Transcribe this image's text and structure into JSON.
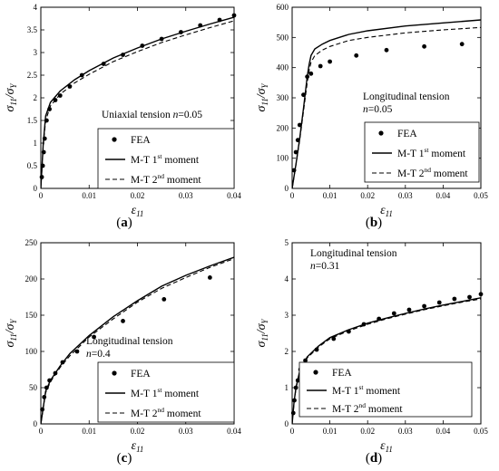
{
  "panels": [
    {
      "caption": "a",
      "annotation": [
        "Uniaxial tension ",
        "n",
        "=0.05"
      ],
      "ylabel": [
        "σ",
        "11",
        "/σ",
        "Y"
      ],
      "xlabel": [
        "ε",
        "11"
      ],
      "xlim": [
        0,
        0.04
      ],
      "ylim": [
        0,
        4
      ],
      "xticks": [
        0,
        0.01,
        0.02,
        0.03,
        0.04
      ],
      "xtick_labels": [
        "0",
        "0.01",
        "0.02",
        "0.03",
        "0.04"
      ],
      "yticks": [
        0,
        0.5,
        1,
        1.5,
        2,
        2.5,
        3,
        3.5,
        4
      ],
      "ytick_labels": [
        "0",
        "0.5",
        "1",
        "1.5",
        "2",
        "2.5",
        "3",
        "3.5",
        "4"
      ],
      "legend": [
        "FEA",
        "M-T 1",
        "st",
        " moment",
        "M-T 2",
        "nd",
        " moment"
      ]
    },
    {
      "caption": "b",
      "annotation": [
        "Longitudinal tension",
        "n",
        "=0.05"
      ],
      "ylabel": [
        "σ",
        "11",
        "/σ",
        "Y"
      ],
      "xlabel": [
        "ε",
        "11"
      ],
      "xlim": [
        0,
        0.05
      ],
      "ylim": [
        0,
        600
      ],
      "xticks": [
        0,
        0.01,
        0.02,
        0.03,
        0.04,
        0.05
      ],
      "xtick_labels": [
        "0",
        "0.01",
        "0.02",
        "0.03",
        "0.04",
        "0.05"
      ],
      "yticks": [
        0,
        100,
        200,
        300,
        400,
        500,
        600
      ],
      "ytick_labels": [
        "0",
        "100",
        "200",
        "300",
        "400",
        "500",
        "600"
      ],
      "legend": [
        "FEA",
        "M-T 1",
        "st",
        " moment",
        "M-T 2",
        "nd",
        " moment"
      ]
    },
    {
      "caption": "c",
      "annotation": [
        "Longitudinal tension",
        "n",
        "=0.4"
      ],
      "ylabel": [
        "σ",
        "11",
        "/σ",
        "Y"
      ],
      "xlabel": [
        "ε",
        "11"
      ],
      "xlim": [
        0,
        0.04
      ],
      "ylim": [
        0,
        250
      ],
      "xticks": [
        0,
        0.01,
        0.02,
        0.03,
        0.04
      ],
      "xtick_labels": [
        "0",
        "0.01",
        "0.02",
        "0.03",
        "0.04"
      ],
      "yticks": [
        0,
        50,
        100,
        150,
        200,
        250
      ],
      "ytick_labels": [
        "0",
        "50",
        "100",
        "150",
        "200",
        "250"
      ],
      "legend": [
        "FEA",
        "M-T 1",
        "st",
        " moment",
        "M-T 2",
        "nd",
        " moment"
      ]
    },
    {
      "caption": "d",
      "annotation": [
        "Longitudinal tension",
        "n",
        "=0.31"
      ],
      "ylabel": [
        "σ",
        "11",
        "/σ",
        "Y"
      ],
      "xlabel": [
        "ε",
        "11"
      ],
      "xlim": [
        0,
        0.05
      ],
      "ylim": [
        0,
        5
      ],
      "xticks": [
        0,
        0.01,
        0.02,
        0.03,
        0.04,
        0.05
      ],
      "xtick_labels": [
        "0",
        "0.01",
        "0.02",
        "0.03",
        "0.04",
        "0.05"
      ],
      "yticks": [
        0,
        1,
        2,
        3,
        4,
        5
      ],
      "ytick_labels": [
        "0",
        "1",
        "2",
        "3",
        "4",
        "5"
      ],
      "legend": [
        "FEA",
        "M-T 1",
        "st",
        " moment",
        "M-T 2",
        "nd",
        " moment"
      ]
    }
  ],
  "chart_data": [
    {
      "type": "line",
      "series": [
        {
          "name": "FEA",
          "style": "points",
          "x": [
            0.0002,
            0.0004,
            0.0006,
            0.0008,
            0.0012,
            0.0018,
            0.003,
            0.004,
            0.006,
            0.0085,
            0.013,
            0.017,
            0.021,
            0.025,
            0.029,
            0.033,
            0.037,
            0.04
          ],
          "y": [
            0.25,
            0.5,
            0.8,
            1.1,
            1.5,
            1.75,
            1.95,
            2.05,
            2.25,
            2.5,
            2.75,
            2.95,
            3.15,
            3.3,
            3.45,
            3.6,
            3.72,
            3.82
          ]
        },
        {
          "name": "M-T 1st moment",
          "style": "solid",
          "x": [
            0,
            0.0005,
            0.001,
            0.002,
            0.004,
            0.007,
            0.01,
            0.015,
            0.02,
            0.025,
            0.03,
            0.035,
            0.04
          ],
          "y": [
            0,
            1.0,
            1.6,
            1.9,
            2.15,
            2.4,
            2.6,
            2.88,
            3.1,
            3.3,
            3.47,
            3.63,
            3.78
          ]
        },
        {
          "name": "M-T 2nd moment",
          "style": "dashed",
          "x": [
            0,
            0.0005,
            0.001,
            0.002,
            0.004,
            0.007,
            0.01,
            0.015,
            0.02,
            0.025,
            0.03,
            0.035,
            0.04
          ],
          "y": [
            0,
            0.95,
            1.5,
            1.82,
            2.08,
            2.33,
            2.52,
            2.8,
            3.02,
            3.22,
            3.39,
            3.55,
            3.7
          ]
        }
      ]
    },
    {
      "type": "line",
      "series": [
        {
          "name": "FEA",
          "style": "points",
          "x": [
            0.0005,
            0.001,
            0.0015,
            0.002,
            0.003,
            0.004,
            0.005,
            0.0075,
            0.01,
            0.017,
            0.025,
            0.035,
            0.045
          ],
          "y": [
            60,
            120,
            160,
            210,
            310,
            370,
            380,
            405,
            420,
            440,
            458,
            470,
            478
          ]
        },
        {
          "name": "M-T 1st moment",
          "style": "solid",
          "x": [
            0,
            0.001,
            0.002,
            0.003,
            0.004,
            0.0045,
            0.005,
            0.006,
            0.008,
            0.01,
            0.015,
            0.02,
            0.03,
            0.04,
            0.05
          ],
          "y": [
            0,
            80,
            165,
            265,
            370,
            410,
            440,
            462,
            478,
            490,
            510,
            522,
            538,
            548,
            558
          ]
        },
        {
          "name": "M-T 2nd moment",
          "style": "dashed",
          "x": [
            0,
            0.001,
            0.002,
            0.003,
            0.004,
            0.0045,
            0.005,
            0.006,
            0.008,
            0.01,
            0.015,
            0.02,
            0.03,
            0.04,
            0.05
          ],
          "y": [
            0,
            78,
            160,
            255,
            350,
            390,
            418,
            440,
            458,
            470,
            490,
            500,
            515,
            525,
            533
          ]
        }
      ]
    },
    {
      "type": "line",
      "series": [
        {
          "name": "FEA",
          "style": "points",
          "x": [
            0.0003,
            0.0007,
            0.0012,
            0.0018,
            0.003,
            0.0045,
            0.0075,
            0.011,
            0.017,
            0.0255,
            0.035
          ],
          "y": [
            20,
            37,
            50,
            60,
            70,
            85,
            100,
            120,
            142,
            172,
            202
          ]
        },
        {
          "name": "M-T 1st moment",
          "style": "solid",
          "x": [
            0,
            0.001,
            0.002,
            0.004,
            0.006,
            0.01,
            0.015,
            0.02,
            0.025,
            0.03,
            0.035,
            0.04
          ],
          "y": [
            0,
            45,
            60,
            80,
            97,
            122,
            148,
            170,
            190,
            205,
            218,
            230
          ]
        },
        {
          "name": "M-T 2nd moment",
          "style": "dashed",
          "x": [
            0,
            0.001,
            0.002,
            0.004,
            0.006,
            0.01,
            0.015,
            0.02,
            0.025,
            0.03,
            0.035,
            0.04
          ],
          "y": [
            0,
            43,
            58,
            78,
            94,
            120,
            145,
            168,
            187,
            202,
            216,
            228
          ]
        }
      ]
    },
    {
      "type": "line",
      "series": [
        {
          "name": "FEA",
          "style": "points",
          "x": [
            0.0003,
            0.0006,
            0.001,
            0.0015,
            0.0022,
            0.0035,
            0.0065,
            0.011,
            0.015,
            0.019,
            0.023,
            0.027,
            0.031,
            0.035,
            0.039,
            0.043,
            0.047,
            0.05
          ],
          "y": [
            0.3,
            0.65,
            1.0,
            1.2,
            1.5,
            1.75,
            2.05,
            2.35,
            2.55,
            2.75,
            2.9,
            3.05,
            3.15,
            3.25,
            3.35,
            3.45,
            3.5,
            3.58
          ]
        },
        {
          "name": "M-T 1st moment",
          "style": "solid",
          "x": [
            0,
            0.0005,
            0.001,
            0.002,
            0.004,
            0.007,
            0.01,
            0.015,
            0.02,
            0.025,
            0.03,
            0.035,
            0.04,
            0.045,
            0.05
          ],
          "y": [
            0,
            0.6,
            1.0,
            1.45,
            1.85,
            2.15,
            2.38,
            2.6,
            2.78,
            2.92,
            3.05,
            3.17,
            3.28,
            3.38,
            3.48
          ]
        },
        {
          "name": "M-T 2nd moment",
          "style": "dashed",
          "x": [
            0,
            0.0005,
            0.001,
            0.002,
            0.004,
            0.007,
            0.01,
            0.015,
            0.02,
            0.025,
            0.03,
            0.035,
            0.04,
            0.045,
            0.05
          ],
          "y": [
            0,
            0.58,
            0.97,
            1.42,
            1.82,
            2.12,
            2.35,
            2.57,
            2.75,
            2.9,
            3.03,
            3.15,
            3.26,
            3.36,
            3.45
          ]
        }
      ]
    }
  ]
}
